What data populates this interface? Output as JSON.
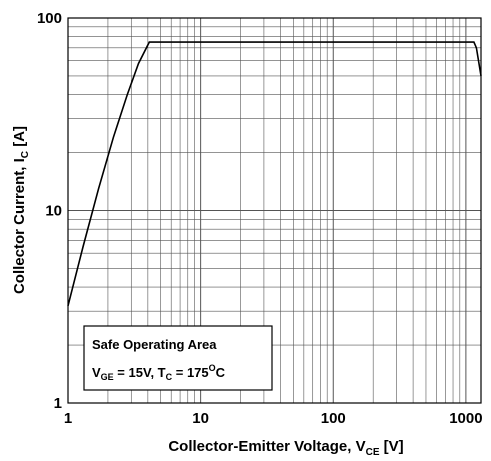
{
  "chart_data": {
    "type": "line",
    "xscale": "log",
    "yscale": "log",
    "xlim": [
      1,
      1300
    ],
    "ylim": [
      1,
      100
    ],
    "grid": true,
    "xticks": [
      {
        "value": 1,
        "label": "1"
      },
      {
        "value": 10,
        "label": "10"
      },
      {
        "value": 100,
        "label": "100"
      },
      {
        "value": 1000,
        "label": "1000"
      }
    ],
    "yticks": [
      {
        "value": 1,
        "label": "1"
      },
      {
        "value": 10,
        "label": "10"
      },
      {
        "value": 100,
        "label": "100"
      }
    ],
    "xlabel": {
      "main": "Collector-Emitter Voltage, V",
      "sub": "CE",
      "unit": " [V]"
    },
    "ylabel": {
      "main": "Collector Current, I",
      "sub": "C",
      "unit": " [A]"
    },
    "annotation": {
      "title": "Safe Operating Area",
      "v_sym": "V",
      "v_sub": "GE",
      "v_val": " = 15V, ",
      "t_sym": "T",
      "t_sub": "C",
      "t_val": " = 175",
      "deg": "O",
      "t_unit": "C"
    },
    "series": [
      {
        "color": "#000000",
        "x": [
          1,
          1.3,
          1.7,
          2.2,
          2.8,
          3.4,
          4.1,
          10,
          100,
          1150,
          1200,
          1300
        ],
        "y": [
          3.2,
          6.5,
          13,
          24,
          40,
          58,
          75,
          75,
          75,
          75,
          70,
          50
        ]
      }
    ]
  }
}
